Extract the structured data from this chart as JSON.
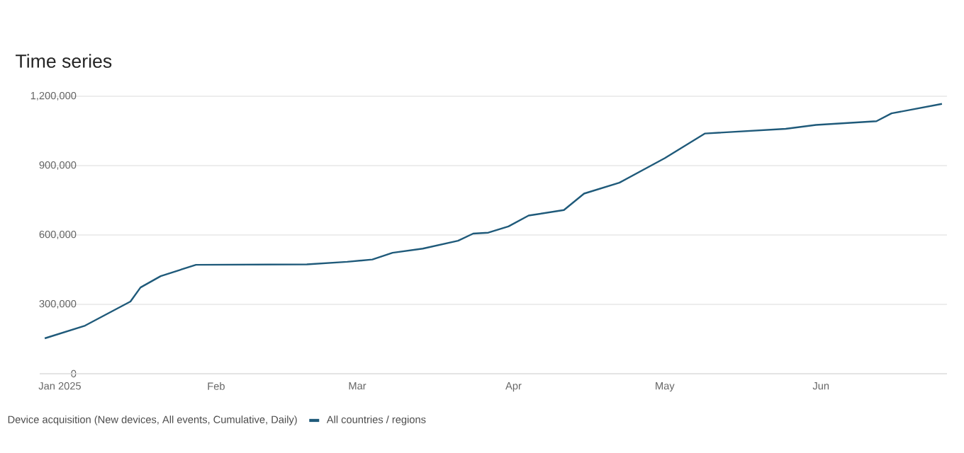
{
  "chart_data": {
    "type": "line",
    "title": "Time series",
    "legend_title": "Device acquisition (New devices, All events, Cumulative, Daily)",
    "x": [
      "2024-12-29",
      "2025-01-06",
      "2025-01-15",
      "2025-01-17",
      "2025-01-21",
      "2025-01-28",
      "2025-02-19",
      "2025-02-27",
      "2025-03-04",
      "2025-03-08",
      "2025-03-14",
      "2025-03-21",
      "2025-03-24",
      "2025-03-27",
      "2025-03-31",
      "2025-04-04",
      "2025-04-11",
      "2025-04-15",
      "2025-04-22",
      "2025-05-01",
      "2025-05-09",
      "2025-05-25",
      "2025-05-31",
      "2025-06-12",
      "2025-06-15",
      "2025-06-25"
    ],
    "series": [
      {
        "name": "All countries / regions",
        "color": "#1f5a7a",
        "values": [
          153000,
          208000,
          312000,
          373000,
          422000,
          471000,
          473000,
          484000,
          494000,
          523000,
          541000,
          575000,
          606000,
          610000,
          637000,
          684000,
          708000,
          779000,
          826000,
          932000,
          1039000,
          1059000,
          1076000,
          1092000,
          1126000,
          1167000
        ]
      }
    ],
    "xlim": [
      "2024-12-28",
      "2025-06-26"
    ],
    "xticks": [
      {
        "value": "2025-01-01",
        "label": "Jan 2025"
      },
      {
        "value": "2025-02-01",
        "label": "Feb"
      },
      {
        "value": "2025-03-01",
        "label": "Mar"
      },
      {
        "value": "2025-04-01",
        "label": "Apr"
      },
      {
        "value": "2025-05-01",
        "label": "May"
      },
      {
        "value": "2025-06-01",
        "label": "Jun"
      }
    ],
    "ylim": [
      0,
      1200000
    ],
    "yticks": [
      0,
      {
        "value": 300000,
        "label": "300,000"
      },
      {
        "value": 600000,
        "label": "600,000"
      },
      {
        "value": 900000,
        "label": "900,000"
      },
      {
        "value": 1200000,
        "label": "1,200,000"
      }
    ],
    "grid": "y",
    "legend": "bottom",
    "marker": "none",
    "line_style": "solid"
  }
}
